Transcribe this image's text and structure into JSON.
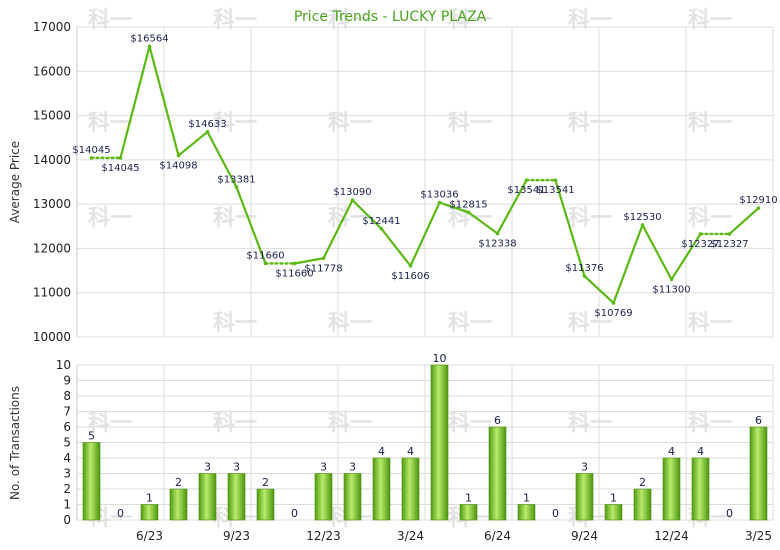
{
  "chart_data": [
    {
      "type": "line",
      "title": "Price Trends - LUCKY PLAZA",
      "ylabel": "Average Price",
      "ylim": [
        10000,
        17000
      ],
      "yticks": [
        10000,
        11000,
        12000,
        13000,
        14000,
        15000,
        16000,
        17000
      ],
      "grid": true,
      "line_color": "#5cb812",
      "points": [
        {
          "v": 14045,
          "label": "$14045",
          "style": "dotted"
        },
        {
          "v": 14045,
          "label": "$14045"
        },
        {
          "v": 16564,
          "label": "$16564"
        },
        {
          "v": 14098,
          "label": "$14098"
        },
        {
          "v": 14633,
          "label": "$14633"
        },
        {
          "v": 13381,
          "label": "$13381"
        },
        {
          "v": 11660,
          "label": "$11660",
          "style": "dotted"
        },
        {
          "v": 11660,
          "label": "$11660"
        },
        {
          "v": 11778,
          "label": "$11778"
        },
        {
          "v": 13090,
          "label": "$13090"
        },
        {
          "v": 12441,
          "label": "$12441"
        },
        {
          "v": 11606,
          "label": "$11606"
        },
        {
          "v": 13036,
          "label": "$13036"
        },
        {
          "v": 12815,
          "label": "$12815"
        },
        {
          "v": 12338,
          "label": "$12338"
        },
        {
          "v": 13541,
          "label": "$13541",
          "style": "dotted"
        },
        {
          "v": 13541,
          "label": "$13541"
        },
        {
          "v": 11376,
          "label": "$11376"
        },
        {
          "v": 10769,
          "label": "$10769"
        },
        {
          "v": 12530,
          "label": "$12530"
        },
        {
          "v": 11300,
          "label": "$11300"
        },
        {
          "v": 12327,
          "label": "$12327",
          "style": "dotted"
        },
        {
          "v": 12327,
          "label": "$12327"
        },
        {
          "v": 12910,
          "label": "$12910"
        }
      ]
    },
    {
      "type": "bar",
      "ylabel": "No. of Transactions",
      "ylim": [
        0,
        10
      ],
      "yticks": [
        0,
        1,
        2,
        3,
        4,
        5,
        6,
        7,
        8,
        9,
        10
      ],
      "grid": true,
      "bar_color": "#6cc11f",
      "x_tick_labels": [
        {
          "after_index": 2,
          "label": "6/23"
        },
        {
          "after_index": 5,
          "label": "9/23"
        },
        {
          "after_index": 8,
          "label": "12/23"
        },
        {
          "after_index": 11,
          "label": "3/24"
        },
        {
          "after_index": 14,
          "label": "6/24"
        },
        {
          "after_index": 17,
          "label": "9/24"
        },
        {
          "after_index": 20,
          "label": "12/24"
        },
        {
          "after_index": 23,
          "label": "3/25"
        }
      ],
      "values": [
        5,
        0,
        1,
        2,
        3,
        3,
        2,
        0,
        3,
        3,
        4,
        4,
        10,
        1,
        6,
        1,
        0,
        3,
        1,
        2,
        4,
        4,
        0,
        6
      ]
    }
  ],
  "watermark": "科一"
}
